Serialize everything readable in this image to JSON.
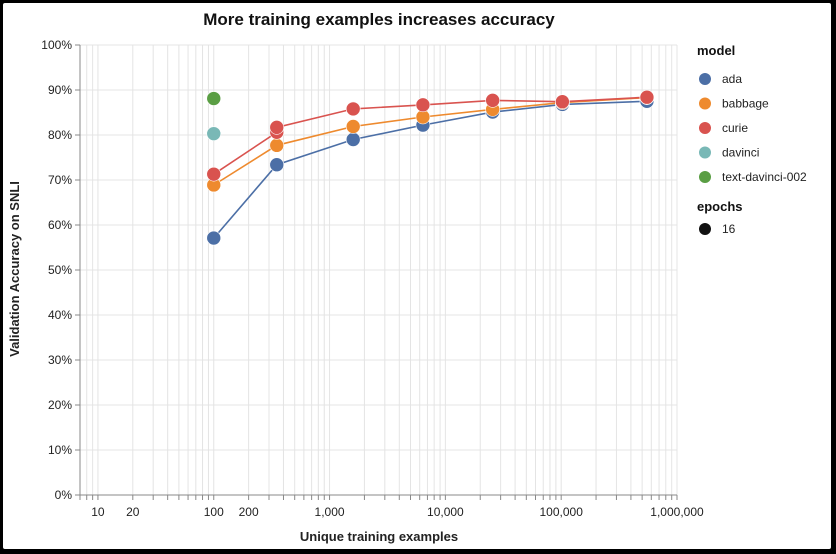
{
  "chart_data": {
    "type": "line",
    "title": "More training examples increases accuracy",
    "xlabel": "Unique training examples",
    "ylabel": "Validation Accuracy on SNLI",
    "x_scale": "log",
    "xlim": [
      7,
      1000000
    ],
    "ylim": [
      0,
      1
    ],
    "grid": true,
    "x_tick_labels": [
      {
        "value": 10,
        "label": "10"
      },
      {
        "value": 20,
        "label": "20"
      },
      {
        "value": 100,
        "label": "100"
      },
      {
        "value": 200,
        "label": "200"
      },
      {
        "value": 1000,
        "label": "1,000"
      },
      {
        "value": 10000,
        "label": "10,000"
      },
      {
        "value": 100000,
        "label": "100,000"
      },
      {
        "value": 1000000,
        "label": "1,000,000"
      }
    ],
    "y_tick_labels": [
      {
        "value": 0,
        "label": "0%"
      },
      {
        "value": 0.1,
        "label": "10%"
      },
      {
        "value": 0.2,
        "label": "20%"
      },
      {
        "value": 0.3,
        "label": "30%"
      },
      {
        "value": 0.4,
        "label": "40%"
      },
      {
        "value": 0.5,
        "label": "50%"
      },
      {
        "value": 0.6,
        "label": "60%"
      },
      {
        "value": 0.7,
        "label": "70%"
      },
      {
        "value": 0.8,
        "label": "80%"
      },
      {
        "value": 0.9,
        "label": "90%"
      },
      {
        "value": 1.0,
        "label": "100%"
      }
    ],
    "legend_placement": "right",
    "legend": {
      "model_title": "model",
      "epochs_title": "epochs",
      "epochs_value": "16"
    },
    "series": [
      {
        "name": "ada",
        "color": "#4c6fa6",
        "points": [
          {
            "x": 100,
            "y": 0.571
          },
          {
            "x": 350,
            "y": 0.734
          },
          {
            "x": 1600,
            "y": 0.79
          },
          {
            "x": 6400,
            "y": 0.822
          },
          {
            "x": 25600,
            "y": 0.851
          },
          {
            "x": 102400,
            "y": 0.868
          },
          {
            "x": 550000,
            "y": 0.875
          }
        ]
      },
      {
        "name": "babbage",
        "color": "#ee8a2e",
        "points": [
          {
            "x": 100,
            "y": 0.689
          },
          {
            "x": 350,
            "y": 0.777
          },
          {
            "x": 1600,
            "y": 0.819
          },
          {
            "x": 6400,
            "y": 0.84
          },
          {
            "x": 25600,
            "y": 0.857
          },
          {
            "x": 102400,
            "y": 0.872
          },
          {
            "x": 550000,
            "y": 0.883
          }
        ]
      },
      {
        "name": "curie",
        "color": "#d9534f",
        "points": [
          {
            "x": 100,
            "y": 0.713
          },
          {
            "x": 350,
            "y": 0.806
          },
          {
            "x": 350,
            "y": 0.817
          },
          {
            "x": 1600,
            "y": 0.858
          },
          {
            "x": 6400,
            "y": 0.867
          },
          {
            "x": 25600,
            "y": 0.877
          },
          {
            "x": 102400,
            "y": 0.874
          },
          {
            "x": 550000,
            "y": 0.884
          }
        ]
      },
      {
        "name": "davinci",
        "color": "#79b8b6",
        "points": [
          {
            "x": 100,
            "y": 0.803
          }
        ]
      },
      {
        "name": "text-davinci-002",
        "color": "#5a9e44",
        "points": [
          {
            "x": 100,
            "y": 0.881
          }
        ]
      }
    ]
  }
}
